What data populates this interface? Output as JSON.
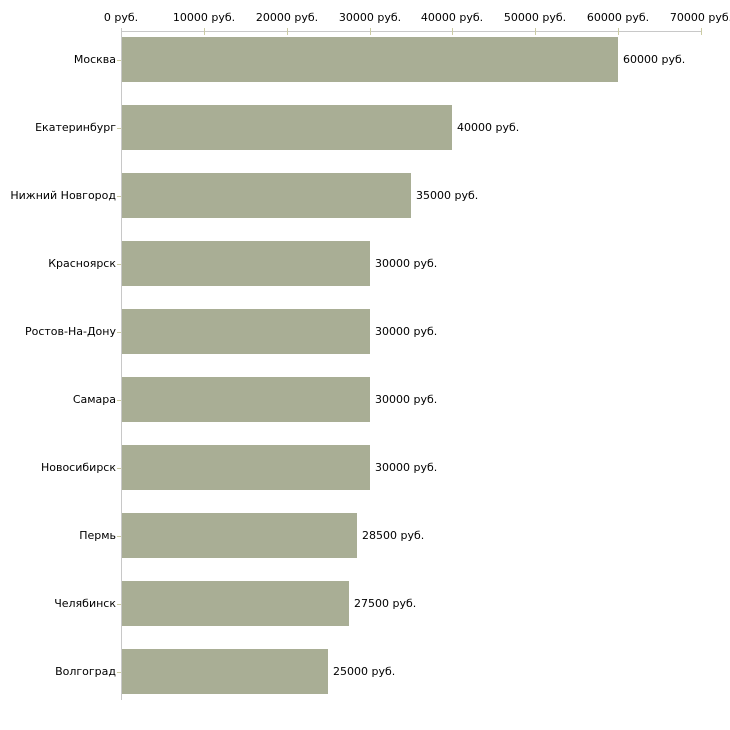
{
  "chart_data": {
    "type": "bar",
    "orientation": "horizontal",
    "title": "",
    "xlabel": "",
    "ylabel": "",
    "unit": "руб.",
    "categories": [
      "Москва",
      "Екатеринбург",
      "Нижний Новгород",
      "Красноярск",
      "Ростов-На-Дону",
      "Самара",
      "Новосибирск",
      "Пермь",
      "Челябинск",
      "Волгоград"
    ],
    "values": [
      60000,
      40000,
      35000,
      30000,
      30000,
      30000,
      30000,
      28500,
      27500,
      25000
    ],
    "value_labels": [
      "60000 руб.",
      "40000 руб.",
      "35000 руб.",
      "30000 руб.",
      "30000 руб.",
      "30000 руб.",
      "30000 руб.",
      "28500 руб.",
      "27500 руб.",
      "25000 руб."
    ],
    "x_ticks": [
      0,
      10000,
      20000,
      30000,
      40000,
      50000,
      60000,
      70000
    ],
    "x_tick_labels": [
      "0 руб.",
      "10000 руб.",
      "20000 руб.",
      "30000 руб.",
      "40000 руб.",
      "50000 руб.",
      "60000 руб.",
      "70000 руб."
    ],
    "xlim": [
      0,
      70000
    ],
    "axis_position": "top",
    "grid": "off",
    "legend": "none",
    "colors": {
      "bar": "#a9ae95",
      "axis_line": "#c8c8c8",
      "tick": "#cbcba3",
      "text": "#000000",
      "background": "#ffffff"
    }
  }
}
